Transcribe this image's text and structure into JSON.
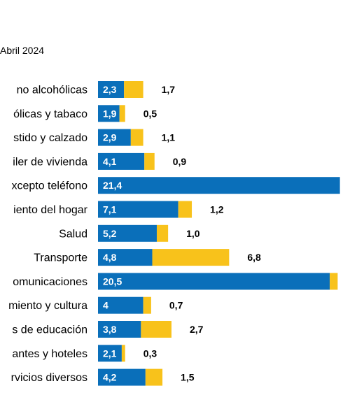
{
  "subtitle": "Abril 2024",
  "colors": {
    "series_a": "#0a6fba",
    "series_b": "#f8c21b"
  },
  "chart_data": {
    "type": "bar",
    "orientation": "horizontal",
    "stacked": true,
    "subtitle": "Abril 2024",
    "categories": [
      "no alcohólicas",
      "ólicas y tabaco",
      "stido y calzado",
      "iler de vivienda",
      "xcepto teléfono",
      "iento del hogar",
      "Salud",
      "Transporte",
      "omunicaciones",
      "miento y cultura",
      "s de educación",
      "antes y hoteles",
      "rvicios diversos"
    ],
    "series": [
      {
        "values": [
          2.3,
          1.9,
          2.9,
          4.1,
          21.4,
          7.1,
          5.2,
          4.8,
          20.5,
          4,
          3.8,
          2.1,
          4.2
        ],
        "labels": [
          "2,3",
          "1,9",
          "2,9",
          "4,1",
          "21,4",
          "7,1",
          "5,2",
          "4,8",
          "20,5",
          "4",
          "3,8",
          "2,1",
          "4,2"
        ]
      },
      {
        "values": [
          1.7,
          0.5,
          1.1,
          0.9,
          null,
          1.2,
          1.0,
          6.8,
          0.7,
          0.7,
          2.7,
          0.3,
          1.5
        ],
        "labels": [
          "1,7",
          "0,5",
          "1,1",
          "0,9",
          "",
          "1,2",
          "1,0",
          "6,8",
          "",
          "0,7",
          "2,7",
          "0,3",
          "1,5"
        ]
      }
    ],
    "grid": false,
    "legend": "none"
  }
}
